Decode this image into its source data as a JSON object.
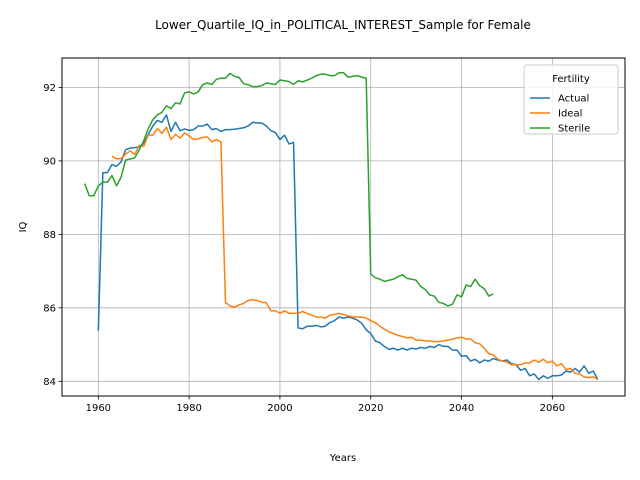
{
  "chart_data": {
    "type": "line",
    "title": "Lower_Quartile_IQ_in_POLITICAL_INTEREST_Sample for Female",
    "xlabel": "Years",
    "ylabel": "IQ",
    "xlim": [
      1952,
      2076
    ],
    "ylim": [
      83.6,
      92.8
    ],
    "xticks": [
      1960,
      1980,
      2000,
      2020,
      2040,
      2060
    ],
    "yticks": [
      84,
      86,
      88,
      90,
      92
    ],
    "grid": true,
    "legend": {
      "title": "Fertility",
      "placement": "top-right"
    },
    "series": [
      {
        "name": "Actual",
        "color": "#1f77b4",
        "points": [
          [
            1960,
            85.38
          ],
          [
            1961,
            89.68
          ],
          [
            1962,
            89.68
          ],
          [
            1963,
            89.9
          ],
          [
            1964,
            89.85
          ],
          [
            1965,
            89.97
          ],
          [
            1966,
            90.3
          ],
          [
            1967,
            90.35
          ],
          [
            1968,
            90.36
          ],
          [
            1969,
            90.38
          ],
          [
            1970,
            90.48
          ],
          [
            1971,
            90.72
          ],
          [
            1972,
            90.95
          ],
          [
            1973,
            91.1
          ],
          [
            1974,
            91.05
          ],
          [
            1975,
            91.25
          ],
          [
            1976,
            90.8
          ],
          [
            1977,
            91.05
          ],
          [
            1978,
            90.82
          ],
          [
            1979,
            90.87
          ],
          [
            1980,
            90.83
          ],
          [
            1981,
            90.85
          ],
          [
            1982,
            90.95
          ],
          [
            1983,
            90.95
          ],
          [
            1984,
            91.0
          ],
          [
            1985,
            90.85
          ],
          [
            1986,
            90.88
          ],
          [
            1987,
            90.8
          ],
          [
            1988,
            90.85
          ],
          [
            1989,
            90.85
          ],
          [
            1990,
            90.86
          ],
          [
            1991,
            90.88
          ],
          [
            1992,
            90.9
          ],
          [
            1993,
            90.95
          ],
          [
            1994,
            91.05
          ],
          [
            1995,
            91.03
          ],
          [
            1996,
            91.03
          ],
          [
            1997,
            90.95
          ],
          [
            1998,
            90.82
          ],
          [
            1999,
            90.77
          ],
          [
            2000,
            90.58
          ],
          [
            2001,
            90.7
          ],
          [
            2002,
            90.46
          ],
          [
            2003,
            90.5
          ],
          [
            2004,
            85.45
          ],
          [
            2005,
            85.43
          ],
          [
            2006,
            85.5
          ],
          [
            2007,
            85.5
          ],
          [
            2008,
            85.52
          ],
          [
            2009,
            85.48
          ],
          [
            2010,
            85.5
          ],
          [
            2011,
            85.6
          ],
          [
            2012,
            85.65
          ],
          [
            2013,
            85.75
          ],
          [
            2014,
            85.72
          ],
          [
            2015,
            85.75
          ],
          [
            2016,
            85.72
          ],
          [
            2017,
            85.67
          ],
          [
            2018,
            85.58
          ],
          [
            2019,
            85.4
          ],
          [
            2020,
            85.3
          ],
          [
            2021,
            85.1
          ],
          [
            2022,
            85.05
          ],
          [
            2023,
            84.95
          ],
          [
            2024,
            84.87
          ],
          [
            2025,
            84.9
          ],
          [
            2026,
            84.85
          ],
          [
            2027,
            84.9
          ],
          [
            2028,
            84.85
          ],
          [
            2029,
            84.9
          ],
          [
            2030,
            84.88
          ],
          [
            2031,
            84.92
          ],
          [
            2032,
            84.9
          ],
          [
            2033,
            84.95
          ],
          [
            2034,
            84.92
          ],
          [
            2035,
            85.0
          ],
          [
            2036,
            84.95
          ],
          [
            2037,
            84.95
          ],
          [
            2038,
            84.85
          ],
          [
            2039,
            84.85
          ],
          [
            2040,
            84.68
          ],
          [
            2041,
            84.7
          ],
          [
            2042,
            84.55
          ],
          [
            2043,
            84.6
          ],
          [
            2044,
            84.5
          ],
          [
            2045,
            84.58
          ],
          [
            2046,
            84.55
          ],
          [
            2047,
            84.62
          ],
          [
            2048,
            84.58
          ],
          [
            2049,
            84.55
          ],
          [
            2050,
            84.58
          ],
          [
            2051,
            84.48
          ],
          [
            2052,
            84.45
          ],
          [
            2053,
            84.3
          ],
          [
            2054,
            84.35
          ],
          [
            2055,
            84.15
          ],
          [
            2056,
            84.2
          ],
          [
            2057,
            84.05
          ],
          [
            2058,
            84.15
          ],
          [
            2059,
            84.08
          ],
          [
            2060,
            84.15
          ],
          [
            2061,
            84.15
          ],
          [
            2062,
            84.17
          ],
          [
            2063,
            84.28
          ],
          [
            2064,
            84.25
          ],
          [
            2065,
            84.35
          ],
          [
            2066,
            84.25
          ],
          [
            2067,
            84.42
          ],
          [
            2068,
            84.22
          ],
          [
            2069,
            84.28
          ],
          [
            2070,
            84.05
          ]
        ]
      },
      {
        "name": "Ideal",
        "color": "#ff7f0e",
        "points": [
          [
            1963,
            90.12
          ],
          [
            1964,
            90.06
          ],
          [
            1965,
            90.06
          ],
          [
            1966,
            90.18
          ],
          [
            1967,
            90.27
          ],
          [
            1968,
            90.18
          ],
          [
            1969,
            90.42
          ],
          [
            1970,
            90.4
          ],
          [
            1971,
            90.7
          ],
          [
            1972,
            90.7
          ],
          [
            1973,
            90.88
          ],
          [
            1974,
            90.75
          ],
          [
            1975,
            90.92
          ],
          [
            1976,
            90.58
          ],
          [
            1977,
            90.72
          ],
          [
            1978,
            90.62
          ],
          [
            1979,
            90.76
          ],
          [
            1980,
            90.68
          ],
          [
            1981,
            90.58
          ],
          [
            1982,
            90.6
          ],
          [
            1983,
            90.64
          ],
          [
            1984,
            90.65
          ],
          [
            1985,
            90.52
          ],
          [
            1986,
            90.58
          ],
          [
            1987,
            90.52
          ],
          [
            1988,
            86.15
          ],
          [
            1989,
            86.05
          ],
          [
            1990,
            86.02
          ],
          [
            1991,
            86.08
          ],
          [
            1992,
            86.12
          ],
          [
            1993,
            86.2
          ],
          [
            1994,
            86.22
          ],
          [
            1995,
            86.2
          ],
          [
            1996,
            86.15
          ],
          [
            1997,
            86.14
          ],
          [
            1998,
            85.92
          ],
          [
            1999,
            85.92
          ],
          [
            2000,
            85.85
          ],
          [
            2001,
            85.92
          ],
          [
            2002,
            85.85
          ],
          [
            2003,
            85.85
          ],
          [
            2004,
            85.85
          ],
          [
            2005,
            85.9
          ],
          [
            2006,
            85.85
          ],
          [
            2007,
            85.8
          ],
          [
            2008,
            85.75
          ],
          [
            2009,
            85.75
          ],
          [
            2010,
            85.72
          ],
          [
            2011,
            85.8
          ],
          [
            2012,
            85.82
          ],
          [
            2013,
            85.85
          ],
          [
            2014,
            85.82
          ],
          [
            2015,
            85.78
          ],
          [
            2016,
            85.75
          ],
          [
            2017,
            85.75
          ],
          [
            2018,
            85.75
          ],
          [
            2019,
            85.72
          ],
          [
            2020,
            85.65
          ],
          [
            2021,
            85.6
          ],
          [
            2022,
            85.5
          ],
          [
            2023,
            85.42
          ],
          [
            2024,
            85.35
          ],
          [
            2025,
            85.3
          ],
          [
            2026,
            85.25
          ],
          [
            2027,
            85.22
          ],
          [
            2028,
            85.18
          ],
          [
            2029,
            85.2
          ],
          [
            2030,
            85.12
          ],
          [
            2031,
            85.12
          ],
          [
            2032,
            85.1
          ],
          [
            2033,
            85.1
          ],
          [
            2034,
            85.08
          ],
          [
            2035,
            85.08
          ],
          [
            2036,
            85.1
          ],
          [
            2037,
            85.12
          ],
          [
            2038,
            85.15
          ],
          [
            2039,
            85.18
          ],
          [
            2040,
            85.2
          ],
          [
            2041,
            85.15
          ],
          [
            2042,
            85.15
          ],
          [
            2043,
            85.05
          ],
          [
            2044,
            85.02
          ],
          [
            2045,
            84.9
          ],
          [
            2046,
            84.75
          ],
          [
            2047,
            84.72
          ],
          [
            2048,
            84.6
          ],
          [
            2049,
            84.55
          ],
          [
            2050,
            84.52
          ],
          [
            2051,
            84.45
          ],
          [
            2052,
            84.45
          ],
          [
            2053,
            84.45
          ],
          [
            2054,
            84.5
          ],
          [
            2055,
            84.5
          ],
          [
            2056,
            84.58
          ],
          [
            2057,
            84.52
          ],
          [
            2058,
            84.6
          ],
          [
            2059,
            84.5
          ],
          [
            2060,
            84.55
          ],
          [
            2061,
            84.42
          ],
          [
            2062,
            84.48
          ],
          [
            2063,
            84.32
          ],
          [
            2064,
            84.35
          ],
          [
            2065,
            84.22
          ],
          [
            2066,
            84.2
          ],
          [
            2067,
            84.12
          ],
          [
            2068,
            84.1
          ],
          [
            2069,
            84.12
          ],
          [
            2070,
            84.05
          ]
        ]
      },
      {
        "name": "Sterile",
        "color": "#2ca02c",
        "points": [
          [
            1957,
            89.38
          ],
          [
            1958,
            89.05
          ],
          [
            1959,
            89.05
          ],
          [
            1960,
            89.32
          ],
          [
            1961,
            89.42
          ],
          [
            1962,
            89.42
          ],
          [
            1963,
            89.6
          ],
          [
            1964,
            89.32
          ],
          [
            1965,
            89.55
          ],
          [
            1966,
            90.02
          ],
          [
            1967,
            90.05
          ],
          [
            1968,
            90.08
          ],
          [
            1969,
            90.3
          ],
          [
            1970,
            90.55
          ],
          [
            1971,
            90.88
          ],
          [
            1972,
            91.12
          ],
          [
            1973,
            91.25
          ],
          [
            1974,
            91.32
          ],
          [
            1975,
            91.5
          ],
          [
            1976,
            91.42
          ],
          [
            1977,
            91.58
          ],
          [
            1978,
            91.55
          ],
          [
            1979,
            91.85
          ],
          [
            1980,
            91.88
          ],
          [
            1981,
            91.82
          ],
          [
            1982,
            91.88
          ],
          [
            1983,
            92.08
          ],
          [
            1984,
            92.12
          ],
          [
            1985,
            92.08
          ],
          [
            1986,
            92.22
          ],
          [
            1987,
            92.25
          ],
          [
            1988,
            92.25
          ],
          [
            1989,
            92.38
          ],
          [
            1990,
            92.3
          ],
          [
            1991,
            92.27
          ],
          [
            1992,
            92.1
          ],
          [
            1993,
            92.07
          ],
          [
            1994,
            92.02
          ],
          [
            1995,
            92.02
          ],
          [
            1996,
            92.05
          ],
          [
            1997,
            92.12
          ],
          [
            1998,
            92.1
          ],
          [
            1999,
            92.08
          ],
          [
            2000,
            92.2
          ],
          [
            2001,
            92.18
          ],
          [
            2002,
            92.16
          ],
          [
            2003,
            92.08
          ],
          [
            2004,
            92.18
          ],
          [
            2005,
            92.15
          ],
          [
            2006,
            92.2
          ],
          [
            2007,
            92.25
          ],
          [
            2008,
            92.32
          ],
          [
            2009,
            92.36
          ],
          [
            2010,
            92.36
          ],
          [
            2011,
            92.32
          ],
          [
            2012,
            92.32
          ],
          [
            2013,
            92.4
          ],
          [
            2014,
            92.4
          ],
          [
            2015,
            92.28
          ],
          [
            2016,
            92.3
          ],
          [
            2017,
            92.32
          ],
          [
            2018,
            92.28
          ],
          [
            2019,
            92.25
          ],
          [
            2020,
            86.92
          ],
          [
            2021,
            86.82
          ],
          [
            2022,
            86.78
          ],
          [
            2023,
            86.72
          ],
          [
            2024,
            86.75
          ],
          [
            2025,
            86.78
          ],
          [
            2026,
            86.85
          ],
          [
            2027,
            86.9
          ],
          [
            2028,
            86.8
          ],
          [
            2029,
            86.78
          ],
          [
            2030,
            86.75
          ],
          [
            2031,
            86.58
          ],
          [
            2032,
            86.5
          ],
          [
            2033,
            86.35
          ],
          [
            2034,
            86.32
          ],
          [
            2035,
            86.15
          ],
          [
            2036,
            86.12
          ],
          [
            2037,
            86.05
          ],
          [
            2038,
            86.1
          ],
          [
            2039,
            86.35
          ],
          [
            2040,
            86.3
          ],
          [
            2041,
            86.62
          ],
          [
            2042,
            86.58
          ],
          [
            2043,
            86.78
          ],
          [
            2044,
            86.6
          ],
          [
            2045,
            86.52
          ],
          [
            2046,
            86.32
          ],
          [
            2047,
            86.38
          ]
        ]
      }
    ]
  }
}
